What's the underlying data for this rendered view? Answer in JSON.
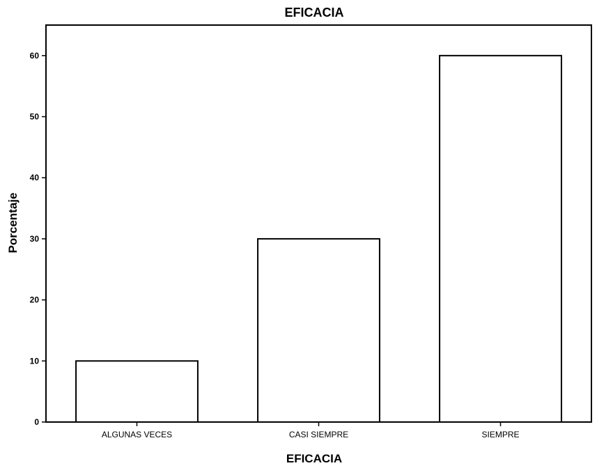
{
  "chart_data": {
    "type": "bar",
    "title": "EFICACIA",
    "xlabel": "EFICACIA",
    "ylabel": "Porcentaje",
    "categories": [
      "ALGUNAS VECES",
      "CASI SIEMPRE",
      "SIEMPRE"
    ],
    "values": [
      10,
      30,
      60
    ],
    "ylim": [
      0,
      65
    ],
    "yticks": [
      0,
      10,
      20,
      30,
      40,
      50,
      60
    ],
    "grid": false,
    "legend": "none",
    "bar_fill": "#ffffff",
    "bar_stroke": "#000000"
  }
}
